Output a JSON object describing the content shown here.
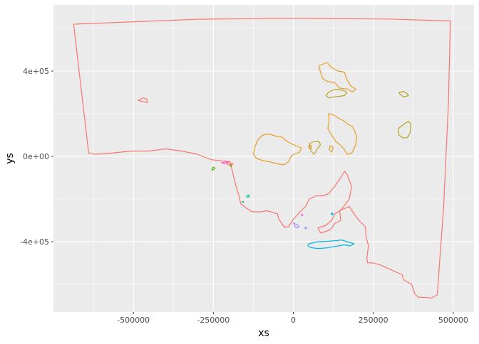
{
  "chart_data": {
    "type": "line",
    "title": "",
    "xlabel": "xs",
    "ylabel": "ys",
    "xlim": [
      -750000,
      565000
    ],
    "ylim": [
      -730000,
      710000
    ],
    "x_ticks": [
      {
        "value": -500000,
        "label": "-500000"
      },
      {
        "value": -250000,
        "label": "-250000"
      },
      {
        "value": 0,
        "label": "0"
      },
      {
        "value": 250000,
        "label": "250000"
      },
      {
        "value": 500000,
        "label": "500000"
      }
    ],
    "y_ticks": [
      {
        "value": 400000,
        "label": "4e+05"
      },
      {
        "value": 0,
        "label": "0e+00"
      },
      {
        "value": -400000,
        "label": "-4e+05"
      }
    ],
    "grid": true,
    "legend": "none",
    "panel_background": "#EBEBEB",
    "series": [
      {
        "color": "#F8766D",
        "paths": [
          [
            [
              -687000,
              620000
            ],
            [
              -300000,
              643000
            ],
            [
              0,
              648000
            ],
            [
              300000,
              644000
            ],
            [
              491000,
              635000
            ],
            [
              485000,
              250000
            ],
            [
              470000,
              -235000
            ],
            [
              450000,
              -650000
            ],
            [
              430000,
              -665000
            ],
            [
              420000,
              -662000
            ],
            [
              390000,
              -660000
            ],
            [
              380000,
              -645000
            ],
            [
              370000,
              -600000
            ],
            [
              345000,
              -580000
            ],
            [
              340000,
              -555000
            ],
            [
              300000,
              -528000
            ],
            [
              270000,
              -508000
            ],
            [
              250000,
              -500000
            ],
            [
              232000,
              -499000
            ],
            [
              230000,
              -475000
            ],
            [
              235000,
              -420000
            ],
            [
              228000,
              -380000
            ],
            [
              225000,
              -330000
            ],
            [
              208000,
              -305000
            ],
            [
              190000,
              -270000
            ],
            [
              175000,
              -235000
            ],
            [
              160000,
              -245000
            ],
            [
              145000,
              -255000
            ],
            [
              148000,
              -300000
            ],
            [
              130000,
              -315000
            ],
            [
              115000,
              -345000
            ],
            [
              95000,
              -355000
            ],
            [
              85000,
              -360000
            ],
            [
              77000,
              -335000
            ],
            [
              100000,
              -325000
            ],
            [
              120000,
              -300000
            ],
            [
              130000,
              -270000
            ],
            [
              150000,
              -250000
            ],
            [
              175000,
              -200000
            ],
            [
              182000,
              -140000
            ],
            [
              168000,
              -85000
            ],
            [
              160000,
              -70000
            ],
            [
              148000,
              -100000
            ],
            [
              130000,
              -140000
            ],
            [
              110000,
              -175000
            ],
            [
              92000,
              -185000
            ],
            [
              72000,
              -185000
            ],
            [
              50000,
              -200000
            ],
            [
              38000,
              -235000
            ],
            [
              18000,
              -265000
            ],
            [
              0,
              -295000
            ],
            [
              -15000,
              -330000
            ],
            [
              -28000,
              -332000
            ],
            [
              -45000,
              -295000
            ],
            [
              -50000,
              -270000
            ],
            [
              -70000,
              -260000
            ],
            [
              -85000,
              -255000
            ],
            [
              -98000,
              -260000
            ],
            [
              -128000,
              -260000
            ],
            [
              -150000,
              -240000
            ],
            [
              -165000,
              -220000
            ],
            [
              -170000,
              -185000
            ],
            [
              -180000,
              -135000
            ],
            [
              -198000,
              -25000
            ],
            [
              -220000,
              -22000
            ],
            [
              -258000,
              -15000
            ],
            [
              -300000,
              10000
            ],
            [
              -350000,
              25000
            ],
            [
              -400000,
              35000
            ],
            [
              -450000,
              25000
            ],
            [
              -500000,
              25000
            ],
            [
              -540000,
              20000
            ],
            [
              -570000,
              15000
            ],
            [
              -620000,
              10000
            ],
            [
              -640000,
              15000
            ],
            [
              -687000,
              620000
            ]
          ],
          [
            [
              -480000,
              265000
            ],
            [
              -470000,
              275000
            ],
            [
              -458000,
              268000
            ],
            [
              -456000,
              252000
            ],
            [
              -468000,
              256000
            ],
            [
              -485000,
              262000
            ],
            [
              -480000,
              265000
            ]
          ],
          [
            [
              -210000,
              -27000
            ],
            [
              -200000,
              -30000
            ],
            [
              -188000,
              -37000
            ],
            [
              -205000,
              -40000
            ],
            [
              -210000,
              -27000
            ]
          ]
        ]
      },
      {
        "color": "#E49E29",
        "paths": [
          [
            [
              80000,
              425000
            ],
            [
              105000,
              440000
            ],
            [
              118000,
              420000
            ],
            [
              125000,
              412000
            ],
            [
              140000,
              400000
            ],
            [
              160000,
              395000
            ],
            [
              168000,
              358000
            ],
            [
              180000,
              330000
            ],
            [
              195000,
              315000
            ],
            [
              185000,
              302000
            ],
            [
              170000,
              315000
            ],
            [
              145000,
              320000
            ],
            [
              130000,
              345000
            ],
            [
              105000,
              352000
            ],
            [
              92000,
              365000
            ],
            [
              85000,
              395000
            ],
            [
              80000,
              425000
            ]
          ],
          [
            [
              110000,
              200000
            ],
            [
              125000,
              195000
            ],
            [
              140000,
              180000
            ],
            [
              160000,
              165000
            ],
            [
              170000,
              150000
            ],
            [
              185000,
              140000
            ],
            [
              192000,
              120000
            ],
            [
              198000,
              90000
            ],
            [
              195000,
              55000
            ],
            [
              183000,
              15000
            ],
            [
              168000,
              10000
            ],
            [
              158000,
              35000
            ],
            [
              145000,
              55000
            ],
            [
              132000,
              72000
            ],
            [
              120000,
              100000
            ],
            [
              108000,
              130000
            ],
            [
              112000,
              170000
            ],
            [
              110000,
              200000
            ]
          ],
          [
            [
              -110000,
              80000
            ],
            [
              -95000,
              100000
            ],
            [
              -75000,
              105000
            ],
            [
              -55000,
              95000
            ],
            [
              -35000,
              90000
            ],
            [
              -20000,
              70000
            ],
            [
              0,
              55000
            ],
            [
              25000,
              40000
            ],
            [
              20000,
              20000
            ],
            [
              -5000,
              5000
            ],
            [
              -15000,
              -25000
            ],
            [
              -30000,
              -40000
            ],
            [
              -50000,
              -35000
            ],
            [
              -75000,
              -25000
            ],
            [
              -95000,
              -20000
            ],
            [
              -115000,
              -10000
            ],
            [
              -125000,
              10000
            ],
            [
              -120000,
              45000
            ],
            [
              -110000,
              80000
            ]
          ],
          [
            [
              115000,
              50000
            ],
            [
              125000,
              42000
            ],
            [
              120000,
              20000
            ],
            [
              113000,
              30000
            ],
            [
              115000,
              50000
            ]
          ],
          [
            [
              50000,
              55000
            ],
            [
              58000,
              50000
            ],
            [
              55000,
              35000
            ],
            [
              48000,
              40000
            ],
            [
              50000,
              55000
            ]
          ]
        ]
      },
      {
        "color": "#B6A42A",
        "paths": [
          [
            [
              110000,
              300000
            ],
            [
              130000,
              315000
            ],
            [
              155000,
              310000
            ],
            [
              168000,
              300000
            ],
            [
              160000,
              285000
            ],
            [
              135000,
              280000
            ],
            [
              110000,
              275000
            ],
            [
              102000,
              285000
            ],
            [
              110000,
              300000
            ]
          ],
          [
            [
              330000,
              300000
            ],
            [
              345000,
              305000
            ],
            [
              355000,
              295000
            ],
            [
              360000,
              285000
            ],
            [
              345000,
              278000
            ],
            [
              335000,
              290000
            ],
            [
              330000,
              300000
            ]
          ],
          [
            [
              328000,
              130000
            ],
            [
              345000,
              150000
            ],
            [
              360000,
              165000
            ],
            [
              368000,
              150000
            ],
            [
              365000,
              110000
            ],
            [
              358000,
              90000
            ],
            [
              345000,
              85000
            ],
            [
              330000,
              100000
            ],
            [
              328000,
              130000
            ]
          ],
          [
            [
              50000,
              60000
            ],
            [
              65000,
              70000
            ],
            [
              80000,
              70000
            ],
            [
              85000,
              55000
            ],
            [
              75000,
              35000
            ],
            [
              65000,
              10000
            ],
            [
              55000,
              25000
            ],
            [
              50000,
              60000
            ]
          ]
        ]
      },
      {
        "color": "#53B400",
        "paths": [
          [
            [
              -250000,
              -50000
            ],
            [
              -245000,
              -55000
            ],
            [
              -252000,
              -65000
            ],
            [
              -255000,
              -58000
            ],
            [
              -250000,
              -50000
            ]
          ],
          [
            [
              -195000,
              -40000
            ],
            [
              -192000,
              -44000
            ],
            [
              -198000,
              -46000
            ],
            [
              -195000,
              -40000
            ]
          ]
        ]
      },
      {
        "color": "#00C094",
        "paths": [
          [
            [
              -145000,
              -185000
            ],
            [
              -138000,
              -182000
            ],
            [
              -140000,
              -192000
            ],
            [
              -146000,
              -190000
            ],
            [
              -145000,
              -185000
            ]
          ],
          [
            [
              -158000,
              -210000
            ],
            [
              -155000,
              -215000
            ],
            [
              -160000,
              -214000
            ],
            [
              -158000,
              -210000
            ]
          ]
        ]
      },
      {
        "color": "#00B6EB",
        "paths": [
          [
            [
              48000,
              -410000
            ],
            [
              80000,
              -400000
            ],
            [
              110000,
              -398000
            ],
            [
              135000,
              -395000
            ],
            [
              150000,
              -392000
            ],
            [
              168000,
              -400000
            ],
            [
              190000,
              -410000
            ],
            [
              178000,
              -420000
            ],
            [
              160000,
              -415000
            ],
            [
              140000,
              -420000
            ],
            [
              120000,
              -425000
            ],
            [
              100000,
              -430000
            ],
            [
              75000,
              -432000
            ],
            [
              55000,
              -428000
            ],
            [
              45000,
              -420000
            ],
            [
              48000,
              -410000
            ]
          ],
          [
            [
              120000,
              -265000
            ],
            [
              125000,
              -270000
            ],
            [
              122000,
              -275000
            ],
            [
              118000,
              -270000
            ],
            [
              120000,
              -265000
            ]
          ]
        ]
      },
      {
        "color": "#A58AFF",
        "paths": [
          [
            [
              0,
              -310000
            ],
            [
              10000,
              -320000
            ],
            [
              18000,
              -325000
            ],
            [
              15000,
              -335000
            ],
            [
              5000,
              -330000
            ],
            [
              0,
              -310000
            ]
          ],
          [
            [
              38000,
              -330000
            ],
            [
              42000,
              -337000
            ],
            [
              36000,
              -338000
            ],
            [
              38000,
              -330000
            ]
          ]
        ]
      },
      {
        "color": "#FB61D7",
        "paths": [
          [
            [
              -225000,
              -30000
            ],
            [
              -212000,
              -25000
            ],
            [
              -205000,
              -30000
            ],
            [
              -215000,
              -36000
            ],
            [
              -225000,
              -30000
            ]
          ],
          [
            [
              25000,
              -270000
            ],
            [
              30000,
              -275000
            ],
            [
              27000,
              -280000
            ],
            [
              25000,
              -270000
            ]
          ]
        ]
      }
    ]
  }
}
